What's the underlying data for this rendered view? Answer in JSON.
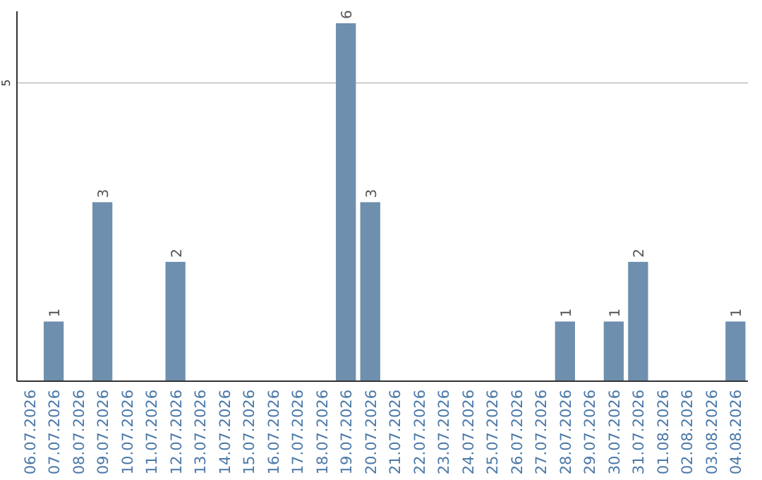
{
  "chart_data": {
    "type": "bar",
    "categories": [
      "06.07.2026",
      "07.07.2026",
      "08.07.2026",
      "09.07.2026",
      "10.07.2026",
      "11.07.2026",
      "12.07.2026",
      "13.07.2026",
      "14.07.2026",
      "15.07.2026",
      "16.07.2026",
      "17.07.2026",
      "18.07.2026",
      "19.07.2026",
      "20.07.2026",
      "21.07.2026",
      "22.07.2026",
      "23.07.2026",
      "24.07.2026",
      "25.07.2026",
      "26.07.2026",
      "27.07.2026",
      "28.07.2026",
      "29.07.2026",
      "30.07.2026",
      "31.07.2026",
      "01.08.2026",
      "02.08.2026",
      "03.08.2026",
      "04.08.2026"
    ],
    "values": [
      0,
      1,
      0,
      3,
      0,
      0,
      2,
      0,
      0,
      0,
      0,
      0,
      0,
      6,
      3,
      0,
      0,
      0,
      0,
      0,
      0,
      0,
      1,
      0,
      1,
      2,
      0,
      0,
      0,
      1
    ],
    "value_labels": [
      null,
      "1",
      null,
      "3",
      null,
      null,
      "2",
      null,
      null,
      null,
      null,
      null,
      null,
      "6",
      "3",
      null,
      null,
      null,
      null,
      null,
      null,
      null,
      "1",
      null,
      "1",
      "2",
      null,
      null,
      null,
      "1"
    ],
    "color": "#6e8fad",
    "ylim": [
      0,
      6.2
    ],
    "yticks": [
      5
    ],
    "grid": "y"
  }
}
